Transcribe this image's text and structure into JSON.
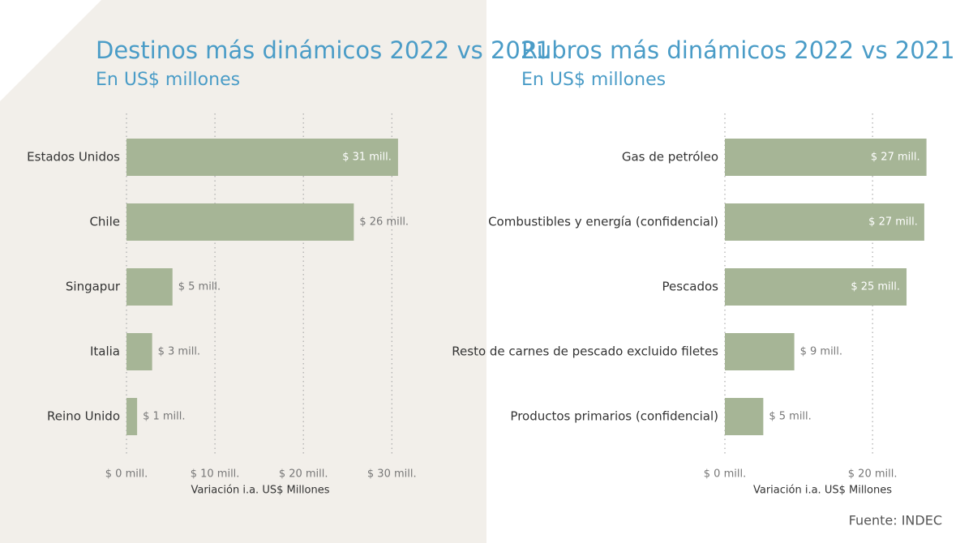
{
  "chart_data": [
    {
      "type": "bar",
      "orientation": "horizontal",
      "title": "Destinos más dinámicos 2022 vs 2021",
      "subtitle": "En US$ millones",
      "categories": [
        "Estados Unidos",
        "Chile",
        "Singapur",
        "Italia",
        "Reino Unido"
      ],
      "values": [
        30.7,
        25.7,
        5.2,
        2.9,
        1.2
      ],
      "value_labels": [
        "$ 31 mill.",
        "$ 26 mill.",
        "$ 5 mill.",
        "$ 3 mill.",
        "$ 1 mill."
      ],
      "color": "#a6b596",
      "xlim": [
        0,
        33
      ],
      "xticks": [
        {
          "value": 0,
          "label": "$ 0 mill."
        },
        {
          "value": 10,
          "label": "$ 10 mill."
        },
        {
          "value": 20,
          "label": "$ 20 mill."
        },
        {
          "value": 30,
          "label": "$ 30 mill."
        }
      ],
      "x_label": "Variación i.a. US$ Millones",
      "grid": true
    },
    {
      "type": "bar",
      "orientation": "horizontal",
      "title": "Rubros más dinámicos 2022 vs 2021",
      "subtitle": "En US$ millones",
      "categories": [
        "Gas de petróleo",
        "Combustibles y energía (confidencial)",
        "Pescados",
        "Resto de carnes de pescado excluido filetes",
        "Productos primarios (confidencial)"
      ],
      "values": [
        27.3,
        27.0,
        24.6,
        9.4,
        5.2
      ],
      "value_labels": [
        "$ 27 mill.",
        "$ 27 mill.",
        "$ 25 mill.",
        "$ 9 mill.",
        "$ 5 mill."
      ],
      "color": "#a6b596",
      "xlim": [
        0,
        28
      ],
      "xticks": [
        {
          "value": 0,
          "label": "$ 0 mill."
        },
        {
          "value": 20,
          "label": "$ 20 mill."
        }
      ],
      "x_label": "Variación i.a. US$ Millones",
      "grid": true
    }
  ],
  "source": "Fuente: INDEC"
}
